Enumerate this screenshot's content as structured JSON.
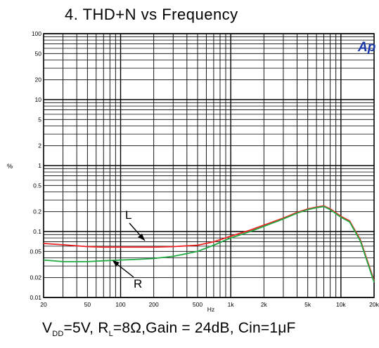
{
  "title": "4. THD+N vs Frequency",
  "caption": {
    "v": "V",
    "v_sub": "DD",
    "v_val": "=5V, R",
    "r_sub": "L",
    "rest": "=8Ω,Gain = 24dB, Cin=1μF"
  },
  "logo": "Ap",
  "chart_data": {
    "type": "line",
    "title": "4. THD+N vs Frequency",
    "xlabel": "Hz",
    "ylabel": "%",
    "xscale": "log",
    "yscale": "log",
    "xlim": [
      20,
      20000
    ],
    "ylim": [
      0.01,
      100
    ],
    "grid": true,
    "x_ticks": [
      "20",
      "50",
      "100",
      "200",
      "500",
      "1k",
      "2k",
      "5k",
      "10k",
      "20k"
    ],
    "x_tick_values": [
      20,
      50,
      100,
      200,
      500,
      1000,
      2000,
      5000,
      10000,
      20000
    ],
    "y_ticks": [
      "0.01",
      "0.02",
      "0.05",
      "0.1",
      "0.2",
      "0.5",
      "1",
      "2",
      "5",
      "10",
      "20",
      "50",
      "100"
    ],
    "y_tick_values": [
      0.01,
      0.02,
      0.05,
      0.1,
      0.2,
      0.5,
      1,
      2,
      5,
      10,
      20,
      50,
      100
    ],
    "series": [
      {
        "name": "L",
        "color": "#ee2222",
        "x": [
          20,
          30,
          50,
          70,
          100,
          150,
          200,
          300,
          500,
          700,
          1000,
          1500,
          2000,
          3000,
          4000,
          5000,
          6000,
          7000,
          8000,
          10000,
          12000,
          15000,
          20000
        ],
        "y": [
          0.066,
          0.063,
          0.059,
          0.058,
          0.058,
          0.058,
          0.058,
          0.059,
          0.062,
          0.07,
          0.085,
          0.105,
          0.125,
          0.16,
          0.195,
          0.22,
          0.235,
          0.245,
          0.22,
          0.17,
          0.145,
          0.075,
          0.018
        ]
      },
      {
        "name": "R",
        "color": "#22aa44",
        "x": [
          20,
          30,
          50,
          70,
          100,
          150,
          200,
          300,
          500,
          700,
          1000,
          1500,
          2000,
          3000,
          4000,
          5000,
          6000,
          7000,
          8000,
          10000,
          12000,
          15000,
          20000
        ],
        "y": [
          0.037,
          0.035,
          0.035,
          0.036,
          0.037,
          0.038,
          0.039,
          0.042,
          0.05,
          0.062,
          0.08,
          0.1,
          0.12,
          0.155,
          0.19,
          0.215,
          0.23,
          0.24,
          0.215,
          0.165,
          0.14,
          0.072,
          0.017
        ]
      }
    ],
    "annotations": [
      "L",
      "R"
    ]
  }
}
